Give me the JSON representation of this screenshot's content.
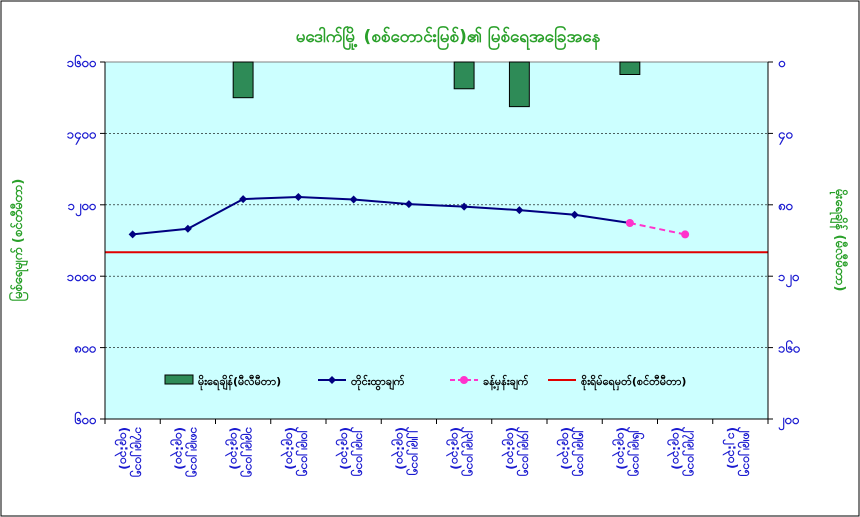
{
  "chart_data": {
    "type": "line",
    "title": "မဒေါက်မြို့ (စစ်တောင်းမြစ်)၏ မြစ်ရေအခြေအနေ",
    "colors": {
      "title": "#2aa02a",
      "axis_label": "#2aa02a",
      "left_ticks": "#1a1ad0",
      "right_ticks": "#1a1ad0",
      "x_ticks": "#1a1ad0",
      "plot_background": "#ccffff",
      "rainfall": "#2e8b57",
      "water_level": "#000080",
      "forecast": "#ff33cc",
      "danger": "#e00000"
    },
    "y_left": {
      "label": "မြစ်ရေမျက် (စင်တီမီတာ)",
      "ylim": [
        600,
        1600
      ],
      "ticks": [
        600,
        800,
        1000,
        1200,
        1400,
        1600
      ],
      "tick_labels": [
        "၆၀၀",
        "၈၀၀",
        "၁၀၀၀",
        "၁၂၀၀",
        "၁၄၀၀",
        "၁၆၀၀"
      ]
    },
    "y_right": {
      "label": "မိုးရေချိန် (မီလီမီတာ)",
      "ylim": [
        0,
        200
      ],
      "inverted": true,
      "ticks": [
        0,
        40,
        80,
        120,
        160,
        200
      ],
      "tick_labels": [
        "၀",
        "၄၀",
        "၈၀",
        "၁၂၀",
        "၁၆၀",
        "၂၀၀"
      ]
    },
    "categories": [
      "၁၇၊၉၊၂၀၁၅ (၀၉:၃၀)",
      "၁၈၊၉၊၂၀၁၅ (၀၉:၃၀)",
      "၁၉၊၉၊၂၀၁၅ (၀၉:၃၀)",
      "၂၀၊၉၊၂၀၁၅ (၀၉:၃၀)",
      "၂၁၊၉၊၂၀၁၅ (၀၉:၃၀)",
      "၂၂၊၉၊၂၀၁၅ (၀၉:၃၀)",
      "၂၃၊၉၊၂၀၁၅ (၀၉:၃၀)",
      "၂၄၊၉၊၂၀၁၅ (၀၉:၃၀)",
      "၂၅၊၉၊၂၀၁၅ (၀၉:၃၀)",
      "၂၆၊၉၊၂၀၁၅ (၀၉:၃၀)",
      "၂၇၊၉၊၂၀၁၅ (၀၉:၃၀)",
      "၂၈၊၉၊၂၀၁၅ (၁၂:၃၀)"
    ],
    "series": [
      {
        "name": "မိုးရေချိန်(မီလီမီတာ)",
        "type": "bar",
        "axis": "right",
        "values": [
          null,
          null,
          20,
          null,
          null,
          null,
          15,
          25,
          null,
          7,
          null,
          null
        ]
      },
      {
        "name": "တိုင်းထွာချက်",
        "type": "line",
        "axis": "left",
        "values": [
          1117,
          1133,
          1216,
          1222,
          1215,
          1202,
          1195,
          1185,
          1172,
          1149,
          null,
          null
        ]
      },
      {
        "name": "ခန့်မှန်းချက်",
        "type": "line",
        "axis": "left",
        "dashed": true,
        "values": [
          null,
          null,
          null,
          null,
          null,
          null,
          null,
          null,
          null,
          1149,
          1117,
          null
        ]
      },
      {
        "name": "စိုးရိမ်ရေမှတ်(စင်တီမီတာ)",
        "type": "reference_line",
        "axis": "left",
        "value": 1067
      }
    ],
    "legend_position": "bottom-inside"
  }
}
